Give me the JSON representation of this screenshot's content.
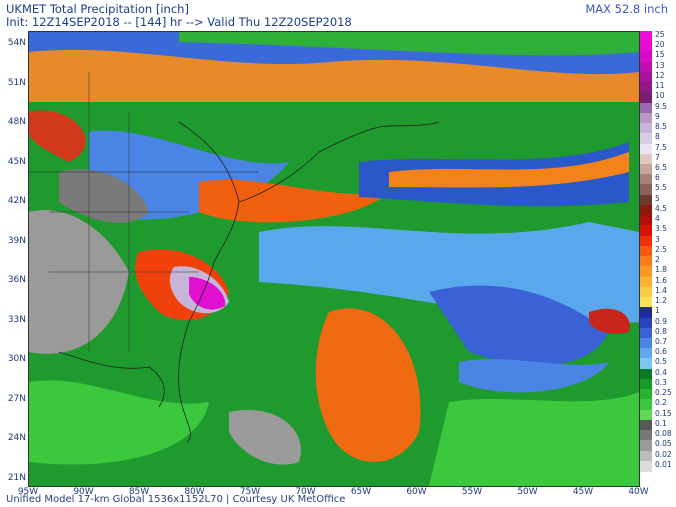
{
  "header": {
    "title": "UKMET Total Precipitation [inch]",
    "subtitle": "Init: 12Z14SEP2018 -- [144] hr --> Valid Thu 12Z20SEP2018",
    "max": "MAX 52.8 inch"
  },
  "footer": "Unified Model 17-km Global 1536x1152L70 | Courtesy UK MetOffice",
  "latitudes": [
    "54N",
    "51N",
    "48N",
    "45N",
    "42N",
    "39N",
    "36N",
    "33N",
    "30N",
    "27N",
    "24N",
    "21N"
  ],
  "longitudes": [
    "95W",
    "90W",
    "85W",
    "80W",
    "75W",
    "70W",
    "65W",
    "60W",
    "55W",
    "50W",
    "45W",
    "40W"
  ],
  "legend": {
    "levels": [
      "25",
      "20",
      "15",
      "13",
      "12",
      "11",
      "10",
      "9.5",
      "9",
      "8.5",
      "8",
      "7.5",
      "7",
      "6.5",
      "6",
      "5.5",
      "5",
      "4.5",
      "4",
      "3.5",
      "3",
      "2.5",
      "2",
      "1.8",
      "1.6",
      "1.4",
      "1.2",
      "1",
      "0.9",
      "0.8",
      "0.7",
      "0.6",
      "0.5",
      "0.4",
      "0.3",
      "0.25",
      "0.2",
      "0.15",
      "0.1",
      "0.08",
      "0.05",
      "0.02",
      "0.01"
    ],
    "colors": [
      "#f00cdc",
      "#e60ad2",
      "#d80ac4",
      "#c00eb0",
      "#a8129c",
      "#8f1a86",
      "#7a1e72",
      "#9a6ab0",
      "#b898c8",
      "#c8b4d8",
      "#d8cce4",
      "#ece4f0",
      "#e0c8c0",
      "#c8a49c",
      "#a8807a",
      "#8a605c",
      "#6e3a2c",
      "#8a1a10",
      "#b00e0a",
      "#d41408",
      "#f0300a",
      "#f55a10",
      "#f87c18",
      "#fa9a24",
      "#fbb432",
      "#fccb46",
      "#fde05c",
      "#1e2ca0",
      "#2a44c0",
      "#3a62d6",
      "#4a84e4",
      "#62a6ee",
      "#7cc6f4",
      "#0c7a22",
      "#199a28",
      "#28b230",
      "#3cc83c",
      "#62d85a",
      "#585858",
      "#787878",
      "#9a9a9a",
      "#bcbcbc",
      "#dcdcdc"
    ]
  }
}
